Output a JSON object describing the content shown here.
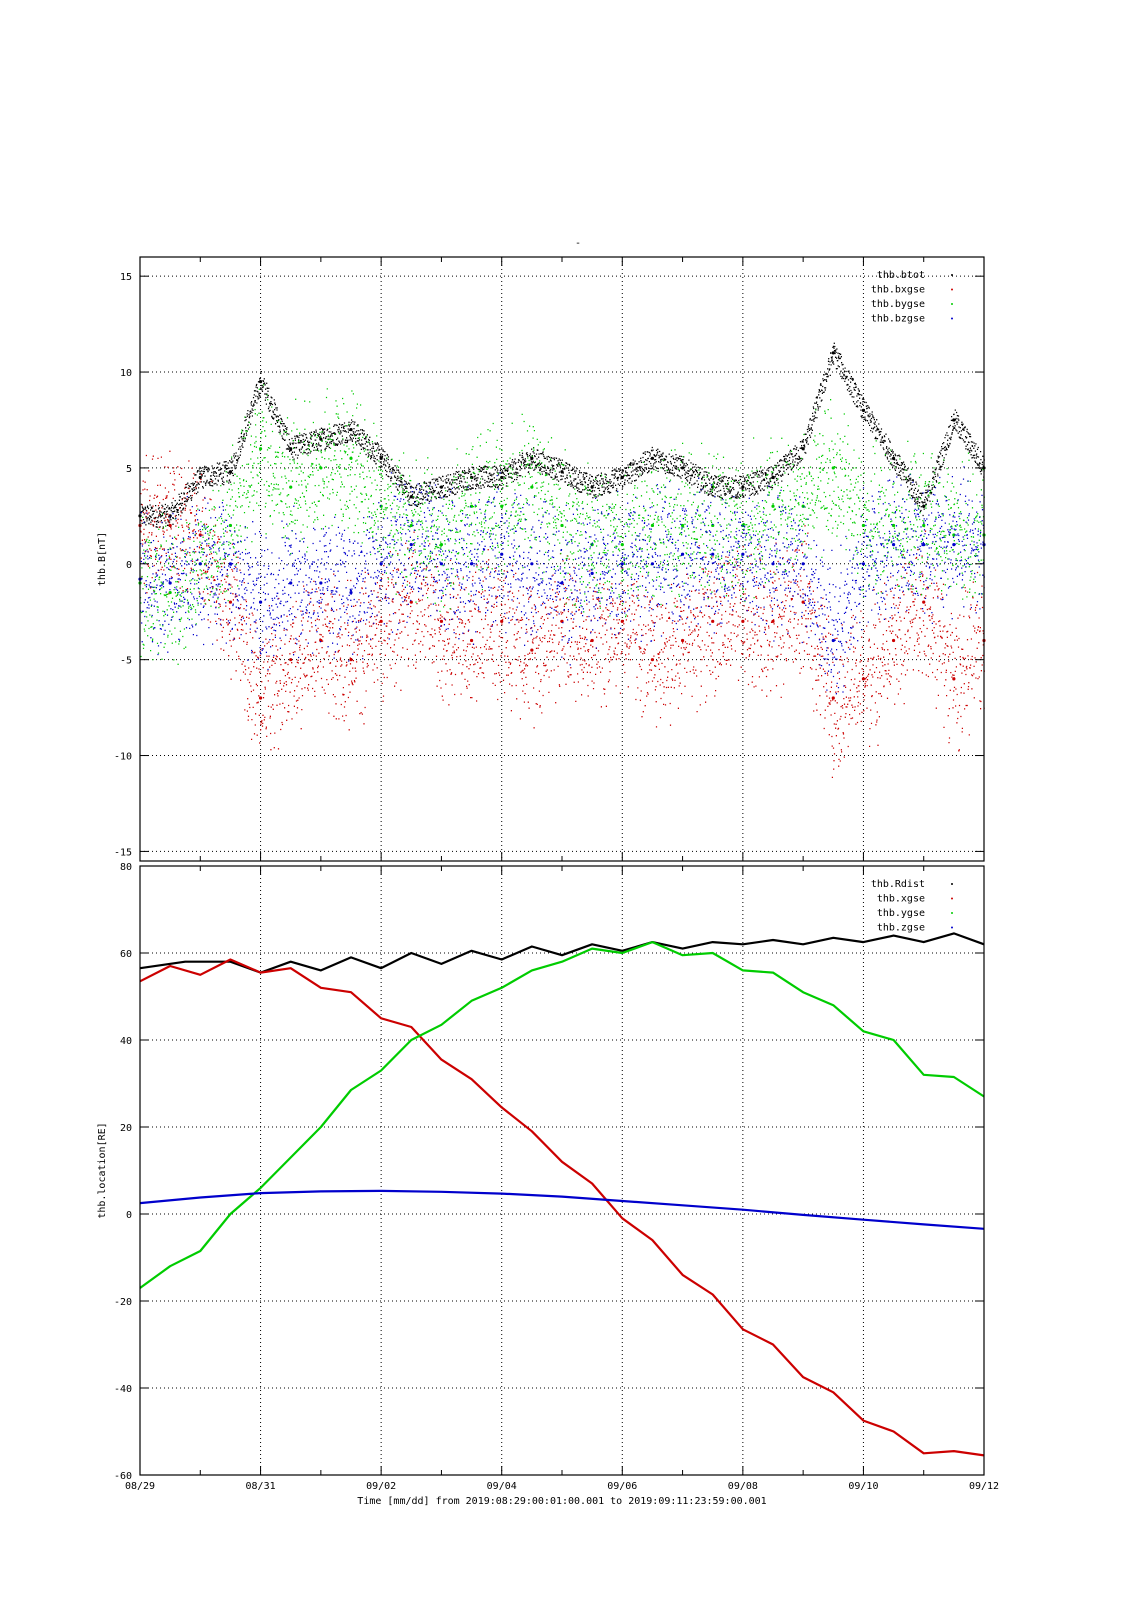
{
  "page_title": "-",
  "chart_data": [
    {
      "type": "scatter",
      "ylabel": "thb.B[nT]",
      "ylim": [
        -15.5,
        16
      ],
      "yticks": [
        -15,
        -10,
        -5,
        0,
        5,
        10,
        15
      ],
      "xlim": [
        "08/29",
        "09/12"
      ],
      "grid": true,
      "legend": "top-right",
      "series": [
        {
          "name": "thb.btot",
          "color": "#000000",
          "x": [
            "08/29 00:00",
            "08/29 12:00",
            "08/30 00:00",
            "08/30 12:00",
            "08/31 00:00",
            "08/31 12:00",
            "09/01 00:00",
            "09/01 12:00",
            "09/02 00:00",
            "09/02 12:00",
            "09/03 00:00",
            "09/03 12:00",
            "09/04 00:00",
            "09/04 12:00",
            "09/05 00:00",
            "09/05 12:00",
            "09/06 00:00",
            "09/06 12:00",
            "09/07 00:00",
            "09/07 12:00",
            "09/08 00:00",
            "09/08 12:00",
            "09/09 00:00",
            "09/09 12:00",
            "09/10 00:00",
            "09/10 12:00",
            "09/11 00:00",
            "09/11 12:00",
            "09/12 00:00"
          ],
          "values": [
            2.5,
            2.5,
            4.5,
            4.8,
            9.5,
            6,
            6.5,
            7,
            5.5,
            3.5,
            4,
            4.5,
            4.5,
            5.5,
            4.8,
            4,
            4.5,
            5.5,
            5,
            4,
            4,
            4.5,
            6,
            11,
            8,
            5.5,
            3,
            7.5,
            5
          ]
        },
        {
          "name": "thb.bxgse",
          "color": "#cc0000",
          "x": [
            "08/29 00:00",
            "08/29 12:00",
            "08/30 00:00",
            "08/30 12:00",
            "08/31 00:00",
            "08/31 12:00",
            "09/01 00:00",
            "09/01 12:00",
            "09/02 00:00",
            "09/02 12:00",
            "09/03 00:00",
            "09/03 12:00",
            "09/04 00:00",
            "09/04 12:00",
            "09/05 00:00",
            "09/05 12:00",
            "09/06 00:00",
            "09/06 12:00",
            "09/07 00:00",
            "09/07 12:00",
            "09/08 00:00",
            "09/08 12:00",
            "09/09 00:00",
            "09/09 12:00",
            "09/10 00:00",
            "09/10 12:00",
            "09/11 00:00",
            "09/11 12:00",
            "09/12 00:00"
          ],
          "values": [
            2,
            2,
            1.5,
            -2,
            -7,
            -5,
            -4,
            -5,
            -3,
            -2,
            -3,
            -4,
            -3,
            -4.5,
            -3,
            -4,
            -3,
            -5,
            -4,
            -3,
            -3,
            -3,
            -2,
            -7,
            -6,
            -4,
            -2,
            -6,
            -4
          ]
        },
        {
          "name": "thb.bygse",
          "color": "#00cc00",
          "x": [
            "08/29 00:00",
            "08/29 12:00",
            "08/30 00:00",
            "08/30 12:00",
            "08/31 00:00",
            "08/31 12:00",
            "09/01 00:00",
            "09/01 12:00",
            "09/02 00:00",
            "09/02 12:00",
            "09/03 00:00",
            "09/03 12:00",
            "09/04 00:00",
            "09/04 12:00",
            "09/05 00:00",
            "09/05 12:00",
            "09/06 00:00",
            "09/06 12:00",
            "09/07 00:00",
            "09/07 12:00",
            "09/08 00:00",
            "09/08 12:00",
            "09/09 00:00",
            "09/09 12:00",
            "09/10 00:00",
            "09/10 12:00",
            "09/11 00:00",
            "09/11 12:00",
            "09/12 00:00"
          ],
          "values": [
            -1,
            -1.5,
            0,
            2,
            6,
            4,
            5,
            5.5,
            3,
            2,
            1,
            3,
            3,
            4,
            2,
            1,
            1,
            2,
            2,
            2,
            2,
            3,
            3,
            5,
            2,
            2,
            2,
            1.5,
            1.5
          ]
        },
        {
          "name": "thb.bzgse",
          "color": "#0000cc",
          "x": [
            "08/29 00:00",
            "08/29 12:00",
            "08/30 00:00",
            "08/30 12:00",
            "08/31 00:00",
            "08/31 12:00",
            "09/01 00:00",
            "09/01 12:00",
            "09/02 00:00",
            "09/02 12:00",
            "09/03 00:00",
            "09/03 12:00",
            "09/04 00:00",
            "09/04 12:00",
            "09/05 00:00",
            "09/05 12:00",
            "09/06 00:00",
            "09/06 12:00",
            "09/07 00:00",
            "09/07 12:00",
            "09/08 00:00",
            "09/08 12:00",
            "09/09 00:00",
            "09/09 12:00",
            "09/10 00:00",
            "09/10 12:00",
            "09/11 00:00",
            "09/11 12:00",
            "09/12 00:00"
          ],
          "values": [
            -0.8,
            -1,
            0,
            0,
            -2,
            -1,
            -1,
            -1.5,
            0,
            1,
            0,
            0,
            0.5,
            0,
            -1,
            -0.5,
            0,
            0,
            0.5,
            0.5,
            0.5,
            0,
            0,
            -4,
            0,
            1,
            1,
            1,
            1
          ]
        }
      ]
    },
    {
      "type": "line",
      "ylabel": "thb.location[RE]",
      "xlabel": "Time [mm/dd]  from 2019:08:29:00:01:00.001  to  2019:09:11:23:59:00.001",
      "ylim": [
        -60,
        80
      ],
      "yticks": [
        -60,
        -40,
        -20,
        0,
        20,
        40,
        60,
        80
      ],
      "xlim": [
        "08/29",
        "09/12"
      ],
      "xticks": [
        "08/29",
        "08/31",
        "09/02",
        "09/04",
        "09/06",
        "09/08",
        "09/10",
        "09/12"
      ],
      "grid": true,
      "legend": "top-right",
      "series": [
        {
          "name": "thb.Rdist",
          "color": "#000000",
          "x": [
            "08/29 00:00",
            "08/29 18:00",
            "08/30 12:00",
            "08/31 00:00",
            "08/31 12:00",
            "09/01 00:00",
            "09/01 12:00",
            "09/02 00:00",
            "09/02 12:00",
            "09/03 00:00",
            "09/03 12:00",
            "09/04 00:00",
            "09/04 12:00",
            "09/05 00:00",
            "09/05 12:00",
            "09/06 00:00",
            "09/06 12:00",
            "09/07 00:00",
            "09/07 12:00",
            "09/08 00:00",
            "09/08 12:00",
            "09/09 00:00",
            "09/09 12:00",
            "09/10 00:00",
            "09/10 12:00",
            "09/11 00:00",
            "09/11 12:00",
            "09/12 00:00"
          ],
          "values": [
            56.5,
            58,
            58,
            55.5,
            58,
            56,
            59,
            56.5,
            60,
            57.5,
            60.5,
            58.5,
            61.5,
            59.5,
            62,
            60.5,
            62.5,
            61,
            62.5,
            62,
            63,
            62,
            63.5,
            62.5,
            64,
            62.5,
            64.5,
            62
          ]
        },
        {
          "name": "thb.xgse",
          "color": "#cc0000",
          "x": [
            "08/29 00:00",
            "08/29 12:00",
            "08/30 00:00",
            "08/30 12:00",
            "08/31 00:00",
            "08/31 12:00",
            "09/01 00:00",
            "09/01 12:00",
            "09/02 00:00",
            "09/02 12:00",
            "09/03 00:00",
            "09/03 12:00",
            "09/04 00:00",
            "09/04 12:00",
            "09/05 00:00",
            "09/05 12:00",
            "09/06 00:00",
            "09/06 12:00",
            "09/07 00:00",
            "09/07 12:00",
            "09/08 00:00",
            "09/08 12:00",
            "09/09 00:00",
            "09/09 12:00",
            "09/10 00:00",
            "09/10 12:00",
            "09/11 00:00",
            "09/11 12:00",
            "09/12 00:00"
          ],
          "values": [
            53.5,
            57,
            55,
            58.5,
            55.5,
            56.5,
            52,
            51,
            45,
            43,
            35.5,
            31,
            24.5,
            19,
            12,
            7,
            -1,
            -6,
            -14,
            -18.5,
            -26.5,
            -30,
            -37.5,
            -41,
            -47.5,
            -50,
            -55,
            -54.5,
            -55.5
          ]
        },
        {
          "name": "thb.ygse",
          "color": "#00cc00",
          "x": [
            "08/29 00:00",
            "08/29 12:00",
            "08/30 00:00",
            "08/30 12:00",
            "08/31 00:00",
            "08/31 12:00",
            "09/01 00:00",
            "09/01 12:00",
            "09/02 00:00",
            "09/02 12:00",
            "09/03 00:00",
            "09/03 12:00",
            "09/04 00:00",
            "09/04 12:00",
            "09/05 00:00",
            "09/05 12:00",
            "09/06 00:00",
            "09/06 12:00",
            "09/07 00:00",
            "09/07 12:00",
            "09/08 00:00",
            "09/08 12:00",
            "09/09 00:00",
            "09/09 12:00",
            "09/10 00:00",
            "09/10 12:00",
            "09/11 00:00",
            "09/11 12:00",
            "09/12 00:00"
          ],
          "values": [
            -17,
            -12,
            -8.5,
            0,
            6,
            13,
            20,
            28.5,
            33,
            40,
            43.5,
            49,
            52,
            56,
            58,
            61,
            60,
            62.5,
            59.5,
            60,
            56,
            55.5,
            51,
            48,
            42,
            40,
            32,
            31.5,
            27
          ]
        },
        {
          "name": "thb.zgse",
          "color": "#0000cc",
          "x": [
            "08/29 00:00",
            "08/30 00:00",
            "08/31 00:00",
            "09/01 00:00",
            "09/02 00:00",
            "09/03 00:00",
            "09/04 00:00",
            "09/05 00:00",
            "09/06 00:00",
            "09/07 00:00",
            "09/08 00:00",
            "09/09 00:00",
            "09/10 00:00",
            "09/11 00:00",
            "09/12 00:00"
          ],
          "values": [
            2.5,
            3.8,
            4.8,
            5.2,
            5.3,
            5.1,
            4.7,
            4,
            3,
            2,
            1,
            -0.2,
            -1.3,
            -2.4,
            -3.4
          ]
        }
      ]
    }
  ]
}
